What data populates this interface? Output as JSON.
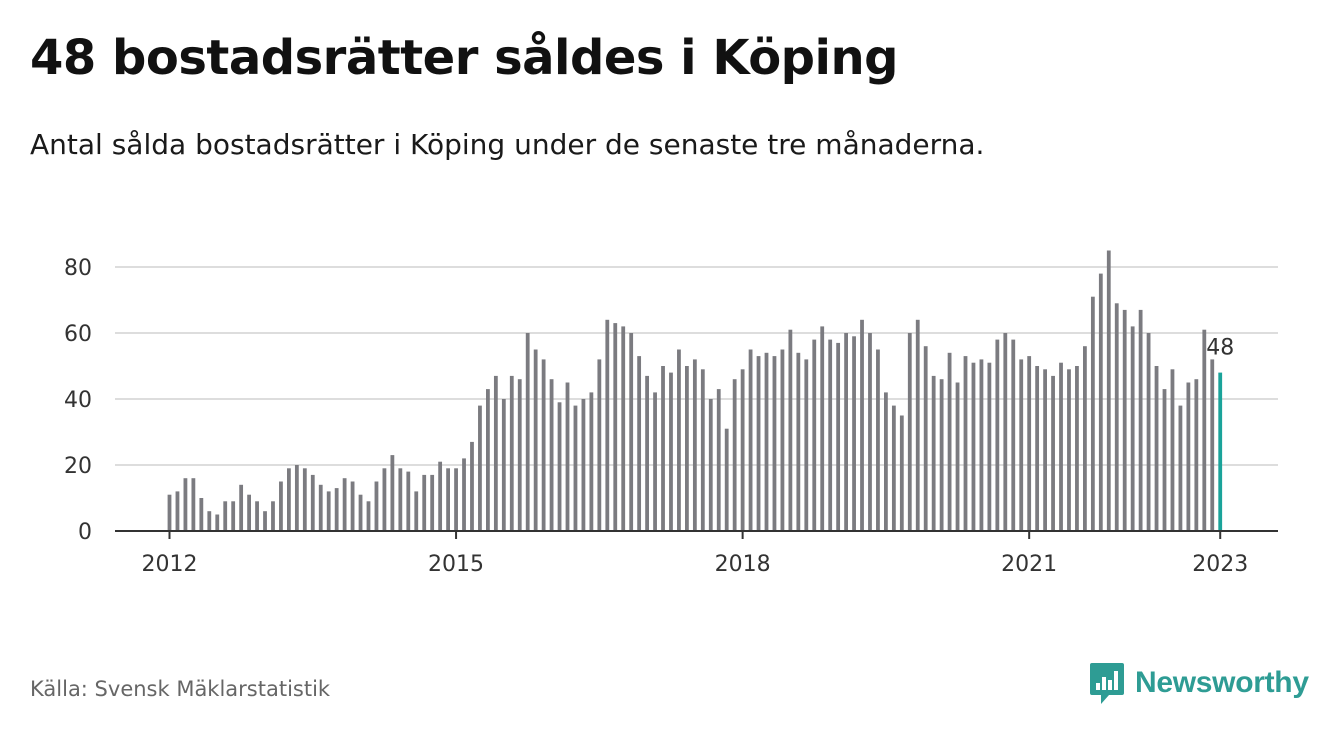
{
  "title": "48 bostadsrätter såldes i Köping",
  "subtitle": "Antal sålda bostadsrätter i Köping under de senaste tre månaderna.",
  "source": "Källa: Svensk Mäklarstatistik",
  "brand": {
    "name": "Newsworthy",
    "color": "#2e9c94",
    "icon": "newsworthy-logo-icon"
  },
  "colors": {
    "bar": "#7b7b80",
    "highlight": "#1aa39a",
    "grid": "#dddddd",
    "axis": "#333333"
  },
  "chart_data": {
    "type": "bar",
    "xlabel": "",
    "ylabel": "",
    "ylim": [
      0,
      90
    ],
    "yticks": [
      0,
      20,
      40,
      60,
      80
    ],
    "xtick_labels": [
      "2012",
      "2015",
      "2018",
      "2021",
      "2023"
    ],
    "grid": true,
    "start": "2012-01",
    "end": "2023-01",
    "highlight_last": true,
    "last_value_label": "48",
    "values": [
      11,
      12,
      16,
      16,
      10,
      6,
      5,
      9,
      9,
      14,
      11,
      9,
      6,
      9,
      15,
      19,
      20,
      19,
      17,
      14,
      12,
      13,
      16,
      15,
      11,
      9,
      15,
      19,
      23,
      19,
      18,
      12,
      17,
      17,
      21,
      19,
      19,
      22,
      27,
      38,
      43,
      47,
      40,
      47,
      46,
      60,
      55,
      52,
      46,
      39,
      45,
      38,
      40,
      42,
      52,
      64,
      63,
      62,
      60,
      53,
      47,
      42,
      50,
      48,
      55,
      50,
      52,
      49,
      40,
      43,
      31,
      46,
      49,
      55,
      53,
      54,
      53,
      55,
      61,
      54,
      52,
      58,
      62,
      58,
      57,
      60,
      59,
      64,
      60,
      55,
      42,
      38,
      35,
      60,
      64,
      56,
      47,
      46,
      54,
      45,
      53,
      51,
      52,
      51,
      58,
      60,
      58,
      52,
      53,
      50,
      49,
      47,
      51,
      49,
      50,
      56,
      71,
      78,
      85,
      69,
      67,
      62,
      67,
      60,
      50,
      43,
      49,
      38,
      45,
      46,
      61,
      52,
      48
    ]
  }
}
